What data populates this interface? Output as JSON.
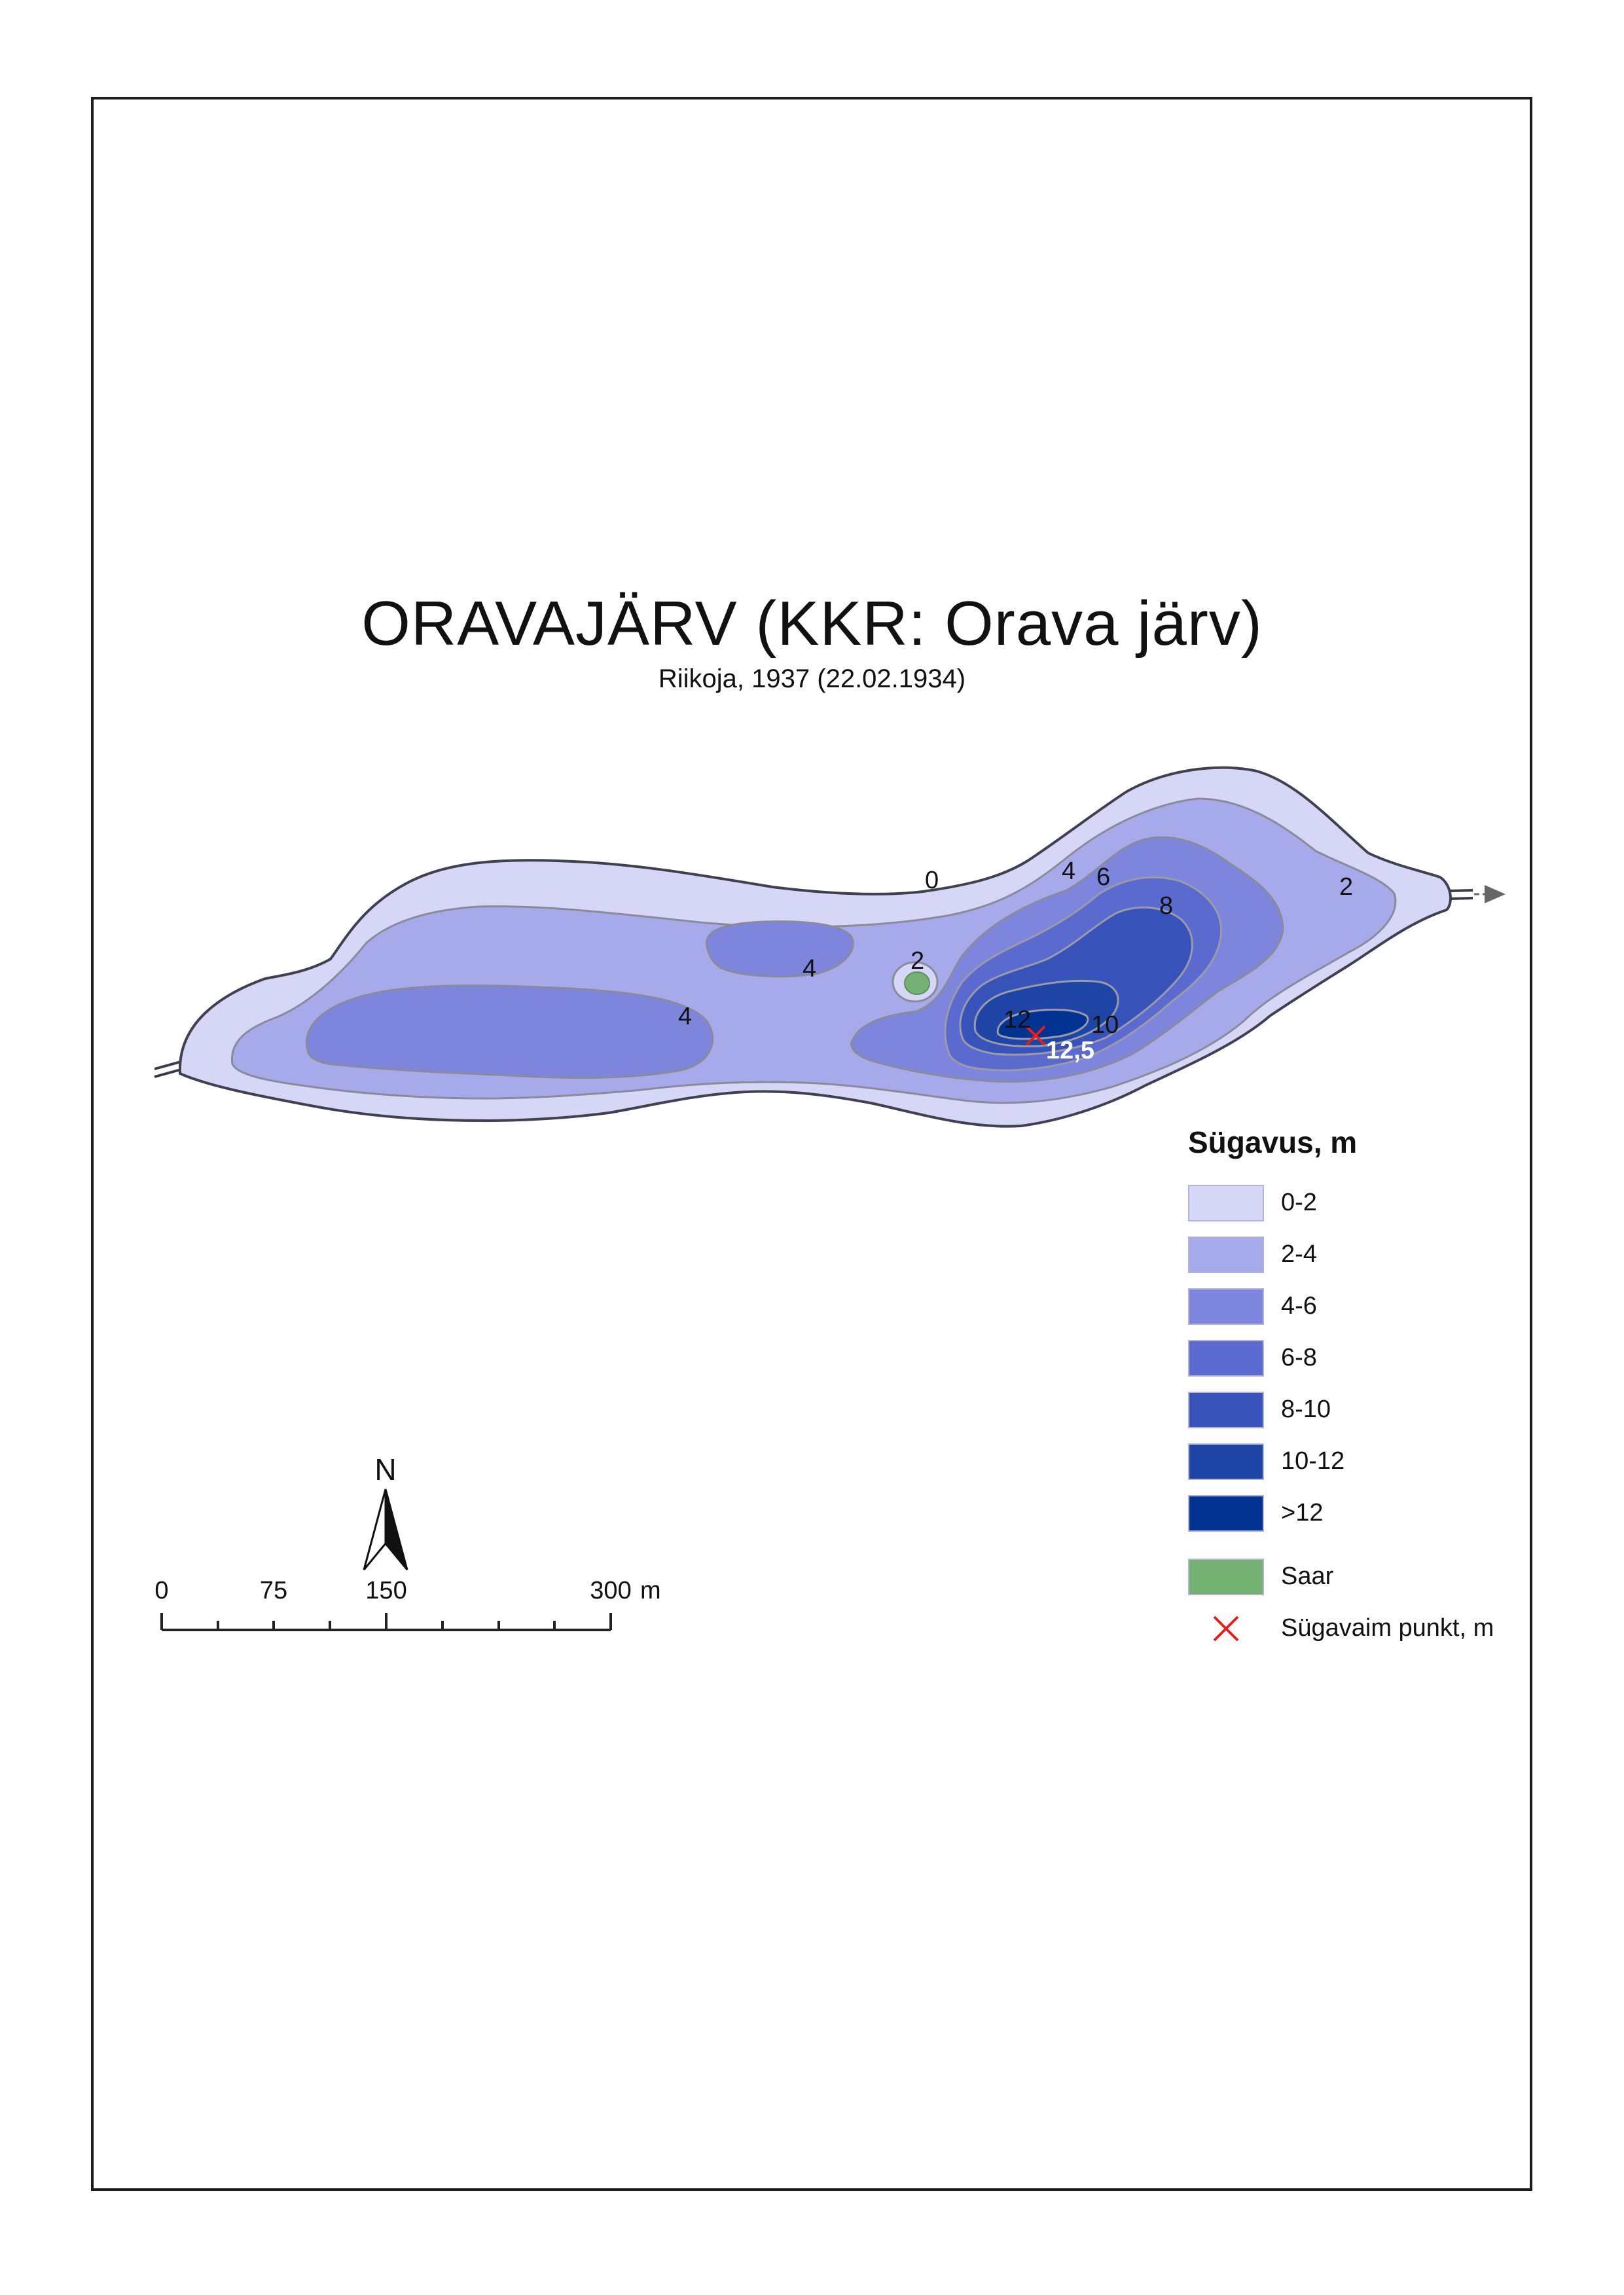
{
  "title": "ORAVAJÄRV (KKR: Orava järv)",
  "subtitle": "Riikoja, 1937 (22.02.1934)",
  "depth_labels": [
    {
      "id": "label-0",
      "text": "0"
    },
    {
      "id": "label-2-east",
      "text": "2"
    },
    {
      "id": "label-2-island",
      "text": "2"
    },
    {
      "id": "label-4-north",
      "text": "4"
    },
    {
      "id": "label-4-mid",
      "text": "4"
    },
    {
      "id": "label-4-west",
      "text": "4"
    },
    {
      "id": "label-6",
      "text": "6"
    },
    {
      "id": "label-8",
      "text": "8"
    },
    {
      "id": "label-10",
      "text": "10"
    },
    {
      "id": "label-12",
      "text": "12"
    }
  ],
  "deepest_point": {
    "value": "12,5",
    "marker_color": "#e0201c"
  },
  "legend": {
    "title": "Sügavus, m",
    "depth_classes": [
      {
        "label": "0-2",
        "color": "#d6d6f7"
      },
      {
        "label": "2-4",
        "color": "#a6aaea"
      },
      {
        "label": "4-6",
        "color": "#7d86dc"
      },
      {
        "label": "6-8",
        "color": "#5a6ace"
      },
      {
        "label": "8-10",
        "color": "#3753ba"
      },
      {
        "label": "10-12",
        "color": "#1e44a6"
      },
      {
        "label": ">12",
        "color": "#023392"
      }
    ],
    "island": {
      "label": "Saar",
      "color": "#74b173"
    },
    "deepest": {
      "label": "Sügavaim punkt, m"
    }
  },
  "north_arrow": {
    "label": "N"
  },
  "scale_bar": {
    "ticks": [
      "0",
      "75",
      "150",
      "300"
    ],
    "unit": "m"
  }
}
